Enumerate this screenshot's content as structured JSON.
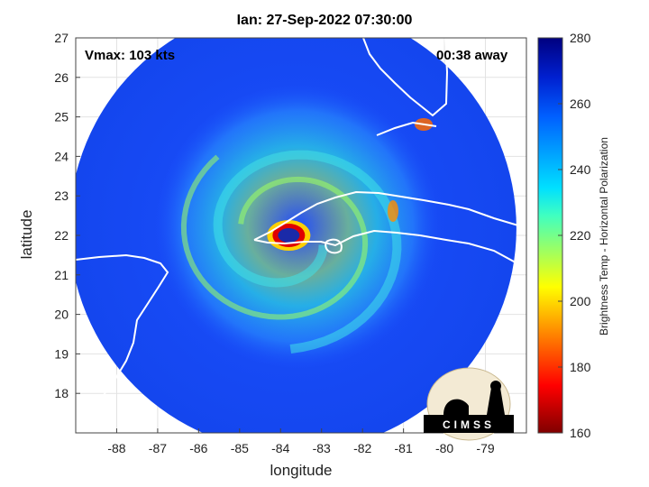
{
  "title": "Ian: 27-Sep-2022 07:30:00",
  "vmax_label": "Vmax: 103 kts",
  "away_label": "00:38 away",
  "xlabel": "longitude",
  "ylabel": "latitude",
  "colorbar_label": "Brightness Temp - Horizontal Polarization",
  "logo_text": "CIMSS",
  "map": {
    "xlim": [
      -89,
      -78
    ],
    "ylim": [
      17,
      27
    ],
    "x_ticks": [
      -88,
      -87,
      -86,
      -85,
      -84,
      -83,
      -82,
      -81,
      -80,
      -79
    ],
    "y_ticks": [
      18,
      19,
      20,
      21,
      22,
      23,
      24,
      25,
      26,
      27
    ],
    "grid": true,
    "storm_center": [
      -83.8,
      22.0
    ],
    "swath_center": [
      -83.7,
      22.0
    ],
    "swath_radius_deg": 5.5
  },
  "colorbar": {
    "range": [
      160,
      280
    ],
    "ticks": [
      160,
      180,
      200,
      220,
      240,
      260,
      280
    ]
  },
  "colors": {
    "background_field": "#1a4cff",
    "eye": "#1a2aa8",
    "eyewall": "#d21414"
  }
}
